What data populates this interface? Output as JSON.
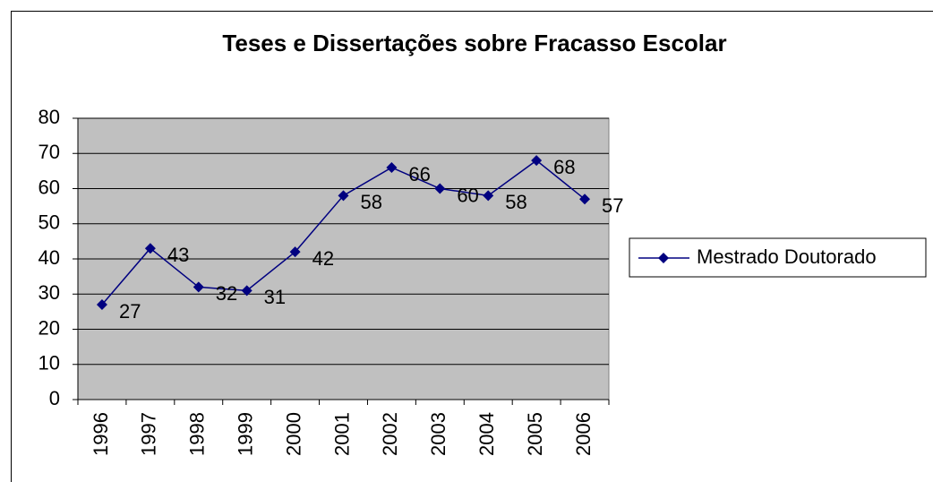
{
  "chart_data": {
    "type": "line",
    "title": "Teses e Dissertações sobre Fracasso Escolar",
    "categories": [
      "1996",
      "1997",
      "1998",
      "1999",
      "2000",
      "2001",
      "2002",
      "2003",
      "2004",
      "2005",
      "2006"
    ],
    "series": [
      {
        "name": "Mestrado Doutorado",
        "color": "#000080",
        "values": [
          27,
          43,
          32,
          31,
          42,
          58,
          66,
          60,
          58,
          68,
          57
        ]
      }
    ],
    "ylim": [
      0,
      80
    ],
    "yticks": [
      0,
      10,
      20,
      30,
      40,
      50,
      60,
      70,
      80
    ],
    "grid": true,
    "legend": "right",
    "plot_background": "#c0c0c0"
  }
}
